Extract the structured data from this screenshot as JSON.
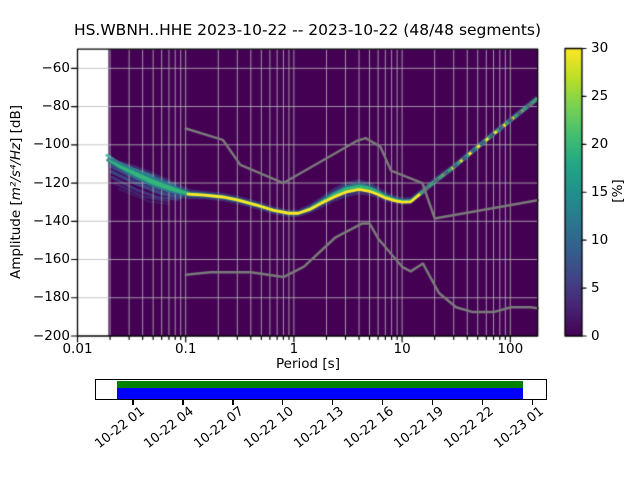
{
  "title": "HS.WBNH..HHE   2023-10-22 -- 2023-10-22  (48/48 segments)",
  "axes": {
    "xlabel": "Period [s]",
    "ylabel_pre": "Amplitude [",
    "ylabel_math": "m²/s⁴/Hz",
    "ylabel_post": "] [dB]",
    "x_ticks": [
      {
        "value": 0.01,
        "label": "0.01"
      },
      {
        "value": 0.1,
        "label": "0.1"
      },
      {
        "value": 1,
        "label": "1"
      },
      {
        "value": 10,
        "label": "10"
      },
      {
        "value": 100,
        "label": "100"
      }
    ],
    "y_ticks": [
      {
        "value": -60,
        "label": "−60"
      },
      {
        "value": -80,
        "label": "−80"
      },
      {
        "value": -100,
        "label": "−100"
      },
      {
        "value": -120,
        "label": "−120"
      },
      {
        "value": -140,
        "label": "−140"
      },
      {
        "value": -160,
        "label": "−160"
      },
      {
        "value": -180,
        "label": "−180"
      },
      {
        "value": -200,
        "label": "−200"
      }
    ]
  },
  "colorbar": {
    "label": "[%]",
    "min": 0,
    "max": 30,
    "ticks": [
      {
        "value": 0,
        "label": "0"
      },
      {
        "value": 5,
        "label": "5"
      },
      {
        "value": 10,
        "label": "10"
      },
      {
        "value": 15,
        "label": "15"
      },
      {
        "value": 20,
        "label": "20"
      },
      {
        "value": 25,
        "label": "25"
      },
      {
        "value": 30,
        "label": "30"
      }
    ],
    "gradient": [
      [
        0.0,
        "#440154"
      ],
      [
        0.1,
        "#482475"
      ],
      [
        0.2,
        "#414487"
      ],
      [
        0.3,
        "#355f8d"
      ],
      [
        0.4,
        "#2a788e"
      ],
      [
        0.5,
        "#21918c"
      ],
      [
        0.6,
        "#22a884"
      ],
      [
        0.7,
        "#44bf70"
      ],
      [
        0.8,
        "#7ad151"
      ],
      [
        0.9,
        "#bddf26"
      ],
      [
        1.0,
        "#fde725"
      ]
    ]
  },
  "chart_data": {
    "type": "heatmap",
    "description": "ObsPy PPSD probabilistic power spectral density histogram, viridis colormap 0-30%, with Peterson NLNM/NHNM reference curves",
    "x_scale": "log",
    "xlim": [
      0.01,
      179
    ],
    "ylim": [
      -200,
      -50
    ],
    "hist_period_range": [
      0.0193,
      179
    ],
    "background_color": "#440154",
    "grid_color": "rgba(184,184,184,0.9)",
    "mode_band": [
      [
        0.0193,
        -108,
        2.0
      ],
      [
        0.025,
        -111.5,
        3.0
      ],
      [
        0.035,
        -115.5,
        4.5
      ],
      [
        0.05,
        -119.5,
        5.0
      ],
      [
        0.07,
        -122.5,
        4.5
      ],
      [
        0.09,
        -124.5,
        3.5
      ],
      [
        0.11,
        -125.8,
        2.6
      ],
      [
        0.15,
        -126.3,
        2.2
      ],
      [
        0.22,
        -127.3,
        2.2
      ],
      [
        0.3,
        -128.8,
        2.2
      ],
      [
        0.45,
        -131.5,
        2.2
      ],
      [
        0.65,
        -134.3,
        2.0
      ],
      [
        0.9,
        -135.8,
        2.0
      ],
      [
        1.1,
        -135.8,
        2.0
      ],
      [
        1.4,
        -133.5,
        2.4
      ],
      [
        1.8,
        -130,
        3.0
      ],
      [
        2.3,
        -126.5,
        3.6
      ],
      [
        3,
        -123.5,
        4.0
      ],
      [
        4,
        -122,
        4.0
      ],
      [
        5,
        -123,
        3.6
      ],
      [
        6,
        -125,
        3.0
      ],
      [
        7,
        -127,
        2.6
      ],
      [
        8.5,
        -128.6,
        2.2
      ],
      [
        10,
        -129.4,
        2.0
      ],
      [
        12,
        -129.3,
        2.0
      ],
      [
        15,
        -125,
        2.0
      ],
      [
        20,
        -119,
        2.0
      ],
      [
        30,
        -111.5,
        2.0
      ],
      [
        50,
        -101,
        2.0
      ],
      [
        80,
        -91.5,
        2.0
      ],
      [
        120,
        -83.5,
        2.0
      ],
      [
        175,
        -76,
        2.0
      ]
    ],
    "band_layers": [
      {
        "k": 1.0,
        "color": "rgba(62,74,137,0.60)"
      },
      {
        "k": 0.55,
        "color": "rgba(38,130,142,0.85)"
      },
      {
        "k": 0.28,
        "color": "rgba(53,183,121,0.95)"
      }
    ],
    "mode_line_color": "#fde725",
    "mode_line": [
      [
        0.105,
        -125.8
      ],
      [
        0.15,
        -126.3
      ],
      [
        0.22,
        -127.3
      ],
      [
        0.3,
        -128.8
      ],
      [
        0.45,
        -131.5
      ],
      [
        0.65,
        -134.3
      ],
      [
        0.9,
        -135.8
      ],
      [
        1.1,
        -135.8
      ],
      [
        1.4,
        -133.8
      ],
      [
        1.8,
        -130.5
      ],
      [
        2.3,
        -127.5
      ],
      [
        3,
        -124.8
      ],
      [
        4,
        -123.3
      ],
      [
        5,
        -124.3
      ],
      [
        6,
        -126
      ],
      [
        7,
        -127.8
      ],
      [
        8.5,
        -129.2
      ],
      [
        10,
        -130
      ],
      [
        12,
        -129.8
      ],
      [
        15,
        -125.3
      ],
      [
        20,
        -119.3
      ],
      [
        30,
        -111.7
      ],
      [
        50,
        -101.2
      ],
      [
        80,
        -91.7
      ],
      [
        120,
        -83.7
      ],
      [
        175,
        -76.2
      ]
    ],
    "climb_dash_start_period": 13,
    "climb_dash_colors": [
      "rgba(33,145,140,0.9)",
      "rgba(59,82,139,0.8)"
    ],
    "fan_lines": [
      {
        "color": "#3fc9a2",
        "width": 3.0,
        "alpha": 0.95,
        "pts": [
          [
            0.0187,
            -105.5
          ],
          [
            0.024,
            -109.5
          ],
          [
            0.032,
            -112.5
          ],
          [
            0.05,
            -116.5
          ]
        ]
      },
      {
        "color": "#2e7fa0",
        "width": 2.5,
        "alpha": 0.7,
        "pts": [
          [
            0.05,
            -116.5
          ],
          [
            0.08,
            -121
          ]
        ]
      },
      {
        "color": "#31688e",
        "width": 3.0,
        "alpha": 0.85,
        "pts": [
          [
            0.019,
            -108
          ],
          [
            0.03,
            -113
          ],
          [
            0.05,
            -118.5
          ],
          [
            0.09,
            -124
          ]
        ]
      },
      {
        "color": "#3b528b",
        "width": 3.5,
        "alpha": 0.85,
        "pts": [
          [
            0.02,
            -111
          ],
          [
            0.032,
            -116.5
          ],
          [
            0.055,
            -122
          ],
          [
            0.095,
            -126
          ]
        ]
      },
      {
        "color": "#3b528b",
        "width": 3.5,
        "alpha": 0.8,
        "pts": [
          [
            0.0205,
            -114
          ],
          [
            0.034,
            -120
          ],
          [
            0.06,
            -125.5
          ],
          [
            0.09,
            -127.5
          ]
        ]
      },
      {
        "color": "#414487",
        "width": 3.0,
        "alpha": 0.75,
        "pts": [
          [
            0.021,
            -117
          ],
          [
            0.035,
            -123.5
          ],
          [
            0.055,
            -127.5
          ],
          [
            0.085,
            -128.5
          ]
        ]
      },
      {
        "color": "#443983",
        "width": 2.5,
        "alpha": 0.6,
        "pts": [
          [
            0.022,
            -120
          ],
          [
            0.04,
            -127
          ],
          [
            0.07,
            -129.5
          ]
        ]
      },
      {
        "color": "#3c3570",
        "width": 2.0,
        "alpha": 0.5,
        "pts": [
          [
            0.024,
            -123
          ],
          [
            0.045,
            -129.5
          ],
          [
            0.07,
            -131
          ]
        ]
      }
    ],
    "noise_models": {
      "color": "#7a7a7a",
      "width": 2.5,
      "nhnm": [
        [
          0.1,
          -91.5
        ],
        [
          0.22,
          -97.4
        ],
        [
          0.32,
          -110.5
        ],
        [
          0.8,
          -120.0
        ],
        [
          3.8,
          -98.0
        ],
        [
          4.6,
          -96.5
        ],
        [
          6.3,
          -101.0
        ],
        [
          7.9,
          -113.5
        ],
        [
          15.4,
          -120.0
        ],
        [
          20.0,
          -138.5
        ],
        [
          179,
          -129.0
        ]
      ],
      "nlnm": [
        [
          0.1,
          -168.0
        ],
        [
          0.17,
          -166.7
        ],
        [
          0.4,
          -166.7
        ],
        [
          0.8,
          -169.2
        ],
        [
          1.24,
          -163.7
        ],
        [
          2.4,
          -148.6
        ],
        [
          4.3,
          -141.1
        ],
        [
          5.0,
          -141.1
        ],
        [
          6.0,
          -149.0
        ],
        [
          10.0,
          -163.8
        ],
        [
          12.0,
          -166.2
        ],
        [
          15.6,
          -162.1
        ],
        [
          21.9,
          -177.5
        ],
        [
          31.6,
          -185.0
        ],
        [
          45.0,
          -187.5
        ],
        [
          70.0,
          -187.5
        ],
        [
          101.0,
          -185.0
        ],
        [
          154.0,
          -185.0
        ],
        [
          179,
          -185.5
        ]
      ]
    }
  },
  "timeline": {
    "tick_labels": [
      "10-22 01",
      "10-22 04",
      "10-22 07",
      "10-22 10",
      "10-22 13",
      "10-22 16",
      "10-22 19",
      "10-22 22",
      "10-23 01"
    ],
    "coverage_color": "#008000",
    "data_extent_color": "#0000ff"
  }
}
